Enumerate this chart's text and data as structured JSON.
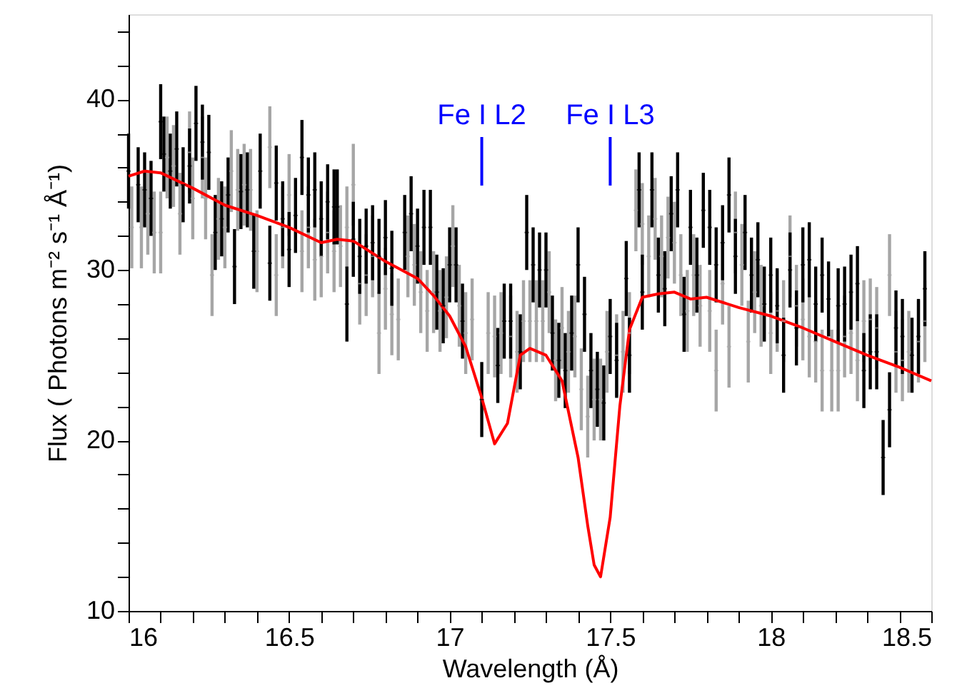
{
  "chart_data": {
    "type": "scatter",
    "xlabel": "Wavelength (Å)",
    "ylabel": "Flux ( Photons m⁻² s⁻¹ Å⁻¹)",
    "xlim": [
      16,
      18.5
    ],
    "ylim": [
      10,
      45
    ],
    "xticks": [
      16,
      {
        "value": 16.1,
        "label": null
      },
      {
        "value": 16.2,
        "label": null
      },
      {
        "value": 16.3,
        "label": null
      },
      {
        "value": 16.4,
        "label": null
      },
      16.5,
      {
        "value": 16.6,
        "label": null
      },
      {
        "value": 16.7,
        "label": null
      },
      {
        "value": 16.8,
        "label": null
      },
      {
        "value": 16.9,
        "label": null
      },
      17,
      {
        "value": 17.1,
        "label": null
      },
      {
        "value": 17.2,
        "label": null
      },
      {
        "value": 17.3,
        "label": null
      },
      {
        "value": 17.4,
        "label": null
      },
      17.5,
      {
        "value": 17.6,
        "label": null
      },
      {
        "value": 17.7,
        "label": null
      },
      {
        "value": 17.8,
        "label": null
      },
      {
        "value": 17.9,
        "label": null
      },
      18,
      {
        "value": 18.1,
        "label": null
      },
      {
        "value": 18.2,
        "label": null
      },
      {
        "value": 18.3,
        "label": null
      },
      {
        "value": 18.4,
        "label": null
      },
      18.5
    ],
    "yticks": [
      10,
      {
        "value": 12,
        "label": null
      },
      {
        "value": 14,
        "label": null
      },
      {
        "value": 16,
        "label": null
      },
      {
        "value": 18,
        "label": null
      },
      20,
      {
        "value": 22,
        "label": null
      },
      {
        "value": 24,
        "label": null
      },
      {
        "value": 26,
        "label": null
      },
      {
        "value": 28,
        "label": null
      },
      30,
      {
        "value": 32,
        "label": null
      },
      {
        "value": 34,
        "label": null
      },
      {
        "value": 36,
        "label": null
      },
      {
        "value": 38,
        "label": null
      },
      40,
      {
        "value": 42,
        "label": null
      },
      {
        "value": 44,
        "label": null
      }
    ],
    "grid": false,
    "ref_lines": [
      {
        "axis": "x",
        "value": 17.1,
        "label": "Fe I L2",
        "color": "#0000ff"
      },
      {
        "axis": "x",
        "value": 17.5,
        "label": "Fe I L3",
        "color": "#0000ff"
      }
    ],
    "series": [
      {
        "color": "#a6a6a6",
        "x": [
          16.01,
          16.04,
          16.06,
          16.08,
          16.1,
          16.12,
          16.14,
          16.16,
          16.19,
          16.2,
          16.23,
          16.24,
          16.26,
          16.28,
          16.3,
          16.32,
          16.34,
          16.36,
          16.38,
          16.4,
          16.44,
          16.46,
          16.48,
          16.5,
          16.54,
          16.56,
          16.58,
          16.6,
          16.62,
          16.64,
          16.66,
          16.68,
          16.7,
          16.72,
          16.74,
          16.76,
          16.78,
          16.8,
          16.82,
          16.84,
          16.87,
          16.89,
          16.91,
          16.93,
          16.95,
          16.97,
          16.99,
          17.01,
          17.03,
          17.05,
          17.07,
          17.12,
          17.14,
          17.16,
          17.19,
          17.21,
          17.23,
          17.25,
          17.27,
          17.29,
          17.31,
          17.33,
          17.35,
          17.37,
          17.39,
          17.41,
          17.43,
          17.45,
          17.47,
          17.49,
          17.52,
          17.54,
          17.56,
          17.58,
          17.6,
          17.62,
          17.64,
          17.66,
          17.68,
          17.7,
          17.72,
          17.74,
          17.76,
          17.78,
          17.81,
          17.83,
          17.85,
          17.87,
          17.89,
          17.91,
          17.93,
          17.95,
          17.97,
          18.0,
          18.02,
          18.04,
          18.06,
          18.08,
          18.1,
          18.12,
          18.14,
          18.16,
          18.19,
          18.21,
          18.23,
          18.25,
          18.27,
          18.29,
          18.31,
          18.33,
          18.37,
          18.39,
          18.41,
          18.43,
          18.46,
          18.48
        ],
        "values": [
          32.5,
          32.5,
          33.3,
          32.2,
          32.2,
          36.6,
          36.1,
          33.3,
          36.9,
          34.2,
          36.6,
          34.2,
          29.7,
          33.0,
          32.5,
          35.8,
          34.7,
          35.0,
          34.7,
          31.1,
          37.2,
          29.7,
          32.5,
          34.4,
          31.1,
          32.5,
          30.6,
          30.8,
          32.2,
          31.1,
          31.4,
          32.5,
          35.0,
          29.2,
          29.7,
          30.8,
          26.3,
          28.9,
          27.4,
          27.1,
          30.8,
          30.3,
          28.7,
          27.6,
          28.7,
          27.6,
          28.4,
          31.4,
          27.9,
          26.3,
          27.1,
          26.3,
          26.1,
          26.3,
          26.1,
          25.2,
          27.0,
          27.0,
          27.0,
          27.0,
          28.7,
          24.7,
          26.6,
          25.2,
          26.1,
          23.0,
          21.4,
          22.4,
          22.4,
          25.2,
          25.0,
          25.2,
          26.3,
          33.5,
          32.7,
          30.8,
          33.0,
          30.8,
          31.9,
          31.6,
          29.7,
          27.6,
          29.7,
          27.9,
          27.6,
          24.1,
          29.2,
          25.5,
          32.2,
          30.3,
          25.8,
          28.7,
          27.9,
          26.3,
          27.6,
          27.0,
          30.8,
          27.9,
          27.1,
          26.1,
          25.8,
          24.1,
          24.1,
          24.1,
          26.1,
          26.3,
          24.7,
          27.0,
          27.1,
          26.6,
          29.7,
          25.2,
          24.7,
          25.2,
          25.8,
          27.0
        ],
        "errors": [
          2.4,
          2.4,
          2.4,
          2.4,
          2.4,
          2.4,
          2.4,
          2.4,
          2.4,
          2.4,
          2.4,
          2.4,
          2.4,
          2.4,
          2.4,
          2.4,
          2.4,
          2.4,
          2.4,
          2.4,
          2.4,
          2.4,
          2.4,
          2.4,
          2.4,
          2.4,
          2.4,
          2.4,
          2.4,
          2.4,
          2.4,
          2.4,
          2.4,
          2.4,
          2.4,
          2.4,
          2.4,
          2.4,
          2.4,
          2.4,
          2.4,
          2.4,
          2.4,
          2.4,
          2.4,
          2.4,
          2.4,
          2.4,
          2.4,
          2.4,
          2.4,
          2.4,
          2.4,
          2.4,
          2.4,
          2.4,
          2.4,
          2.4,
          2.4,
          2.4,
          2.4,
          2.4,
          2.4,
          2.4,
          2.4,
          2.4,
          2.4,
          2.4,
          2.4,
          2.4,
          2.4,
          2.4,
          2.4,
          2.4,
          2.4,
          2.4,
          2.4,
          2.4,
          2.4,
          2.4,
          2.4,
          2.4,
          2.4,
          2.4,
          2.4,
          2.4,
          2.4,
          2.4,
          2.4,
          2.4,
          2.4,
          2.4,
          2.4,
          2.4,
          2.4,
          2.4,
          2.4,
          2.4,
          2.4,
          2.4,
          2.4,
          2.4,
          2.4,
          2.4,
          2.4,
          2.4,
          2.4,
          2.4,
          2.4,
          2.4,
          2.4,
          2.4,
          2.4,
          2.4,
          2.4,
          2.4
        ]
      },
      {
        "color": "#000000",
        "x": [
          16.0,
          16.03,
          16.05,
          16.07,
          16.1,
          16.11,
          16.13,
          16.15,
          16.17,
          16.19,
          16.21,
          16.23,
          16.25,
          16.27,
          16.29,
          16.31,
          16.33,
          16.35,
          16.37,
          16.39,
          16.41,
          16.44,
          16.46,
          16.48,
          16.5,
          16.52,
          16.54,
          16.56,
          16.58,
          16.6,
          16.62,
          16.64,
          16.65,
          16.68,
          16.7,
          16.72,
          16.74,
          16.76,
          16.78,
          16.8,
          16.82,
          16.86,
          16.88,
          16.9,
          16.92,
          16.94,
          16.96,
          16.98,
          17.0,
          17.02,
          17.04,
          17.1,
          17.15,
          17.17,
          17.19,
          17.22,
          17.24,
          17.26,
          17.28,
          17.3,
          17.32,
          17.34,
          17.36,
          17.38,
          17.4,
          17.42,
          17.44,
          17.46,
          17.48,
          17.5,
          17.52,
          17.55,
          17.56,
          17.59,
          17.6,
          17.63,
          17.65,
          17.67,
          17.69,
          17.71,
          17.73,
          17.75,
          17.77,
          17.79,
          17.81,
          17.83,
          17.85,
          17.87,
          17.89,
          17.92,
          17.94,
          17.96,
          17.98,
          18.0,
          18.02,
          18.04,
          18.06,
          18.08,
          18.1,
          18.12,
          18.14,
          18.16,
          18.18,
          18.21,
          18.23,
          18.25,
          18.27,
          18.29,
          18.31,
          18.33,
          18.35,
          18.37,
          18.39,
          18.41,
          18.44,
          18.46,
          18.48
        ],
        "values": [
          35.8,
          35.0,
          34.7,
          34.2,
          38.7,
          36.8,
          35.8,
          37.1,
          35.0,
          36.1,
          38.6,
          37.5,
          36.9,
          32.2,
          33.0,
          34.4,
          30.2,
          34.6,
          34.7,
          31.1,
          35.8,
          30.4,
          35.1,
          33.0,
          31.2,
          33.2,
          36.6,
          34.4,
          34.7,
          33.0,
          34.0,
          33.7,
          33.7,
          28.0,
          31.8,
          30.8,
          31.4,
          31.6,
          30.8,
          31.9,
          30.1,
          32.2,
          33.3,
          31.4,
          32.5,
          32.5,
          28.7,
          27.9,
          30.3,
          30.3,
          27.0,
          22.4,
          24.4,
          27.0,
          27.0,
          25.2,
          32.2,
          30.3,
          30.0,
          30.0,
          26.3,
          24.7,
          24.1,
          26.3,
          30.3,
          27.4,
          24.1,
          23.0,
          22.2,
          26.1,
          24.7,
          29.5,
          25.0,
          34.7,
          28.7,
          34.7,
          29.7,
          28.9,
          33.3,
          34.7,
          27.4,
          32.5,
          29.7,
          33.5,
          32.5,
          30.3,
          31.6,
          34.4,
          30.8,
          32.2,
          29.7,
          30.6,
          28.0,
          29.7,
          27.9,
          25.0,
          30.0,
          26.6,
          30.3,
          30.6,
          28.0,
          29.7,
          28.3,
          27.9,
          28.0,
          28.7,
          29.2,
          24.1,
          25.2,
          25.2,
          19.0,
          21.8,
          26.6,
          26.1,
          25.0,
          26.1,
          28.9
        ],
        "errors": [
          2.2,
          2.2,
          2.2,
          2.2,
          2.2,
          2.2,
          2.2,
          2.2,
          2.2,
          2.2,
          2.2,
          2.2,
          2.2,
          2.2,
          2.2,
          2.2,
          2.2,
          2.2,
          2.2,
          2.2,
          2.2,
          2.2,
          2.2,
          2.2,
          2.2,
          2.2,
          2.2,
          2.2,
          2.2,
          2.2,
          2.2,
          2.2,
          2.2,
          2.2,
          2.2,
          2.2,
          2.2,
          2.2,
          2.2,
          2.2,
          2.2,
          2.2,
          2.2,
          2.2,
          2.2,
          2.2,
          2.2,
          2.2,
          2.2,
          2.2,
          2.2,
          2.2,
          2.2,
          2.2,
          2.2,
          2.2,
          2.2,
          2.2,
          2.2,
          2.2,
          2.2,
          2.2,
          2.2,
          2.2,
          2.2,
          2.2,
          2.2,
          2.2,
          2.2,
          2.2,
          2.2,
          2.2,
          2.2,
          2.2,
          2.2,
          2.2,
          2.2,
          2.2,
          2.2,
          2.2,
          2.2,
          2.2,
          2.2,
          2.2,
          2.2,
          2.2,
          2.2,
          2.2,
          2.2,
          2.2,
          2.2,
          2.2,
          2.2,
          2.2,
          2.2,
          2.2,
          2.2,
          2.2,
          2.2,
          2.2,
          2.2,
          2.2,
          2.2,
          2.2,
          2.2,
          2.2,
          2.2,
          2.2,
          2.2,
          2.2,
          2.2,
          2.2,
          2.2,
          2.2,
          2.2,
          2.2,
          2.2
        ]
      },
      {
        "type": "line",
        "color": "#ff0000",
        "x": [
          16.0,
          16.05,
          16.1,
          16.2,
          16.3,
          16.4,
          16.5,
          16.6,
          16.65,
          16.7,
          16.8,
          16.9,
          16.95,
          17.0,
          17.05,
          17.1,
          17.14,
          17.18,
          17.22,
          17.25,
          17.3,
          17.35,
          17.4,
          17.43,
          17.45,
          17.47,
          17.5,
          17.53,
          17.56,
          17.6,
          17.65,
          17.7,
          17.75,
          17.8,
          17.9,
          18.0,
          18.1,
          18.2,
          18.3,
          18.4,
          18.5
        ],
        "values": [
          35.5,
          35.8,
          35.7,
          34.8,
          33.8,
          33.2,
          32.5,
          31.6,
          31.8,
          31.7,
          30.5,
          29.5,
          28.5,
          27.3,
          25.5,
          22.5,
          19.8,
          21.0,
          25.0,
          25.4,
          25.0,
          23.5,
          19.0,
          15.0,
          12.7,
          12.0,
          15.5,
          22.0,
          26.5,
          28.4,
          28.6,
          28.7,
          28.3,
          28.4,
          27.8,
          27.3,
          26.6,
          25.8,
          25.0,
          24.3,
          23.5
        ]
      }
    ]
  }
}
